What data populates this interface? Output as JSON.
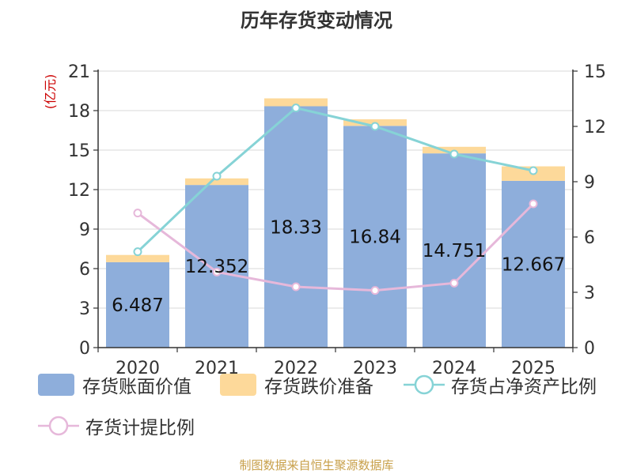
{
  "title": "历年存货变动情况",
  "source": "制图数据来自恒生聚源数据库",
  "colors": {
    "book_value": "#8eaedb",
    "impairment": "#fdd99a",
    "net_asset_ratio": "#86d3d6",
    "provision_ratio": "#e6b8da",
    "axis_unit": "#cc0000"
  },
  "chart_data": {
    "type": "bar",
    "categories": [
      "2020",
      "2021",
      "2022",
      "2023",
      "2024",
      "2025"
    ],
    "y_left": {
      "label": "(亿元)",
      "ylim": [
        0,
        21
      ],
      "ticks": [
        0,
        3,
        6,
        9,
        12,
        15,
        18,
        21
      ]
    },
    "y_right": {
      "ylim": [
        0,
        15
      ],
      "ticks": [
        0,
        3,
        6,
        9,
        12,
        15
      ]
    },
    "grid": true,
    "legend_position": "bottom",
    "series": [
      {
        "name": "存货账面价值",
        "kind": "bar",
        "axis": "left",
        "values": [
          6.487,
          12.352,
          18.33,
          16.84,
          14.751,
          12.667
        ],
        "labels": [
          "6.487",
          "12.352",
          "18.33",
          "16.84",
          "14.751",
          "12.667"
        ]
      },
      {
        "name": "存货跌价准备",
        "kind": "bar-stacked",
        "axis": "left",
        "values": [
          0.55,
          0.5,
          0.6,
          0.5,
          0.5,
          1.1
        ]
      },
      {
        "name": "存货占净资产比例",
        "kind": "line",
        "axis": "right",
        "values": [
          5.2,
          9.3,
          13.0,
          12.0,
          10.5,
          9.6
        ]
      },
      {
        "name": "存货计提比例",
        "kind": "line",
        "axis": "right",
        "values": [
          7.3,
          4.1,
          3.3,
          3.1,
          3.5,
          7.8
        ]
      }
    ]
  }
}
